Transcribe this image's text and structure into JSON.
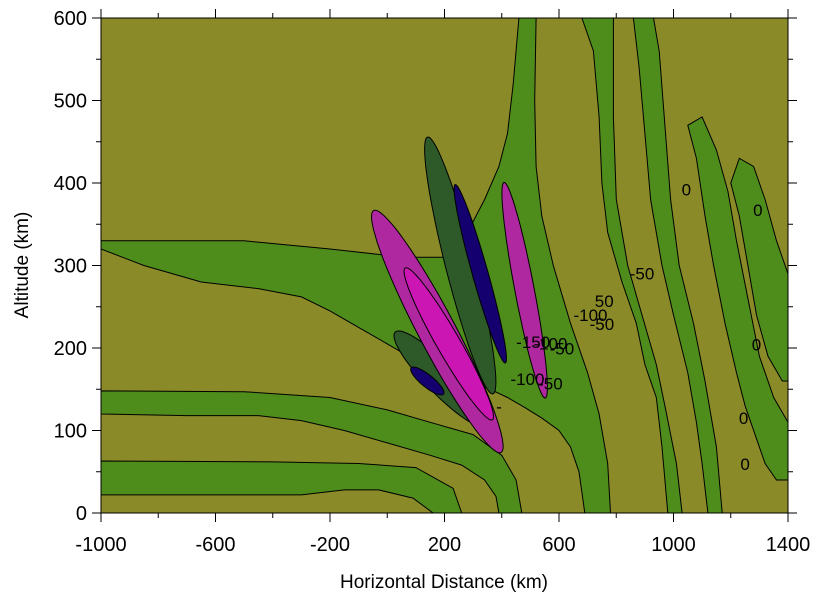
{
  "chart_data": {
    "type": "contour",
    "xlabel": "Horizontal Distance (km)",
    "ylabel": "Altitude (km)",
    "xlim": [
      -1000,
      1400
    ],
    "ylim": [
      0,
      600
    ],
    "x_ticks": [
      -1000,
      -600,
      -200,
      200,
      600,
      1000,
      1400
    ],
    "x_tick_labels": [
      "-1000",
      "-600",
      "-200",
      "200",
      "600",
      "1000",
      "1400"
    ],
    "y_ticks": [
      0,
      100,
      200,
      300,
      400,
      500,
      600
    ],
    "y_tick_labels": [
      "0",
      "100",
      "200",
      "300",
      "400",
      "500",
      "600"
    ],
    "contour_levels": [
      -150,
      -100,
      -50,
      0,
      50,
      100,
      150
    ],
    "colors": {
      "lt_neg100": "#14006e",
      "neg100_to_neg50": "#2d5a28",
      "neg50_to_0": "#4e8c1c",
      "0_to_50": "#8a8a28",
      "50_to_100": "#b028a0",
      "gt_100": "#cc16b4"
    },
    "contour_labels": [
      {
        "text": "0",
        "x": 1045,
        "y": 385
      },
      {
        "text": "0",
        "x": 1295,
        "y": 360
      },
      {
        "text": "0",
        "x": 1290,
        "y": 197
      },
      {
        "text": "0",
        "x": 1245,
        "y": 108
      },
      {
        "text": "0",
        "x": 1250,
        "y": 52
      },
      {
        "text": "-50",
        "x": 890,
        "y": 283
      },
      {
        "text": "50",
        "x": 758,
        "y": 250
      },
      {
        "text": "-100",
        "x": 710,
        "y": 233
      },
      {
        "text": "-50",
        "x": 750,
        "y": 222
      },
      {
        "text": "-150",
        "x": 510,
        "y": 200
      },
      {
        "text": "-100",
        "x": 570,
        "y": 198
      },
      {
        "text": "-50",
        "x": 610,
        "y": 192
      },
      {
        "text": "-100",
        "x": 490,
        "y": 155
      },
      {
        "text": "-50",
        "x": 570,
        "y": 150
      },
      {
        "text": "-",
        "x": 390,
        "y": 122
      }
    ]
  }
}
